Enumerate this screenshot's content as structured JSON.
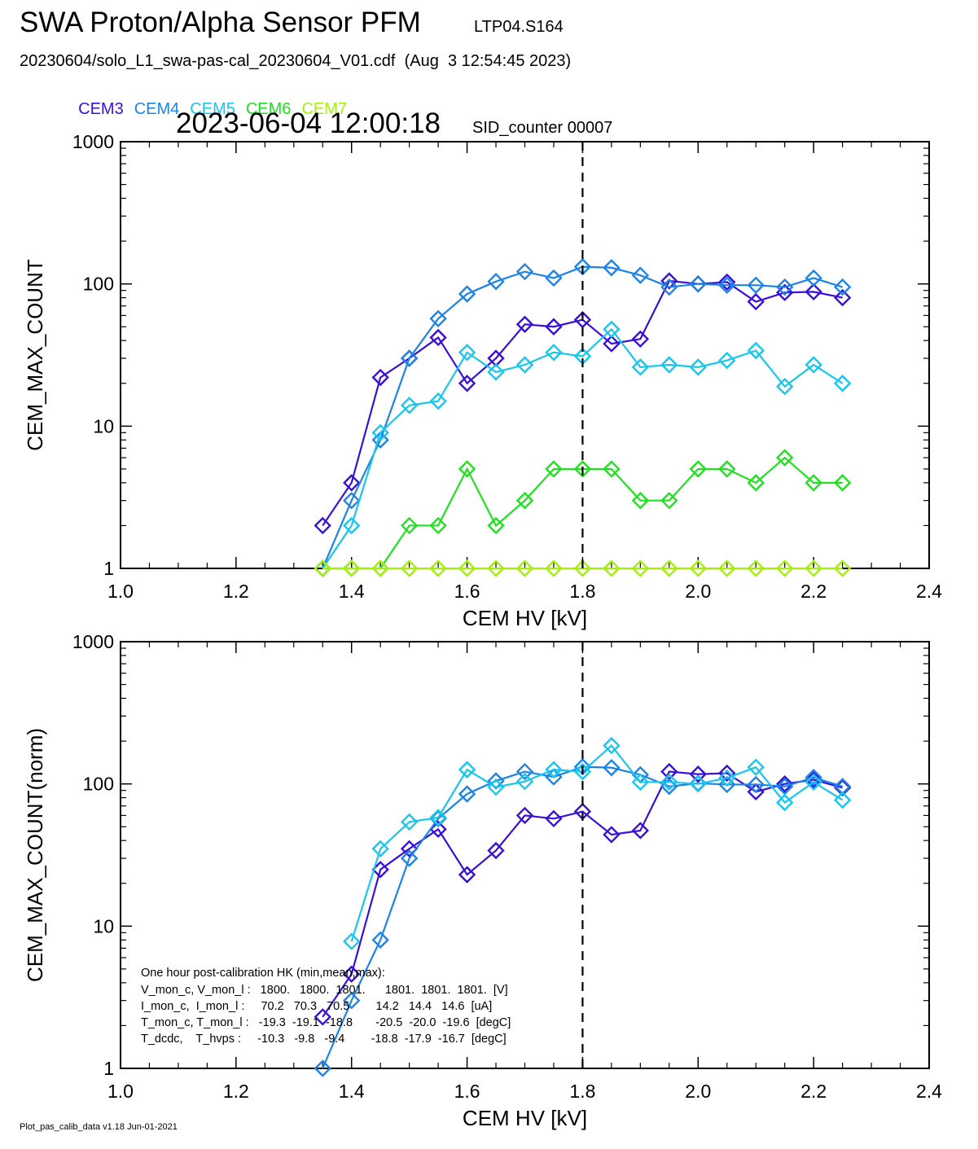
{
  "header": {
    "title": "SWA Proton/Alpha Sensor PFM",
    "title_tag": "LTP04.S164",
    "subtitle": "20230604/solo_L1_swa-pas-cal_20230604_V01.cdf  (Aug  3 12:54:45 2023)",
    "timestamp": "2023-06-04 12:00:18",
    "sid": "SID_counter 00007"
  },
  "legend": [
    {
      "label": "CEM3",
      "color": "#3a10d8"
    },
    {
      "label": "CEM4",
      "color": "#1c84e8"
    },
    {
      "label": "CEM5",
      "color": "#18c6ee"
    },
    {
      "label": "CEM6",
      "color": "#1ee21e"
    },
    {
      "label": "CEM7",
      "color": "#a6ee10"
    }
  ],
  "footer": "Plot_pas_calib_data v1.18 Jun-01-2021",
  "hk_box": {
    "heading": "One hour post-calibration HK (min,mean,max):",
    "lines": [
      "V_mon_c, V_mon_l :   1800.   1800.  1801.      1801.  1801.  1801.  [V]",
      "I_mon_c,  I_mon_l :     70.2   70.3   70.5        14.2   14.4   14.6  [uA]",
      "T_mon_c, T_mon_l :   -19.3  -19.1  -18.8       -20.5  -20.0  -19.6  [degC]",
      "T_dcdc,    T_hvps :     -10.3   -9.8   -9.4        -18.8  -17.9  -16.7  [degC]"
    ]
  },
  "chart_data": [
    {
      "type": "line",
      "log_y": true,
      "xlabel": "CEM HV [kV]",
      "ylabel": "CEM_MAX_COUNT",
      "xlim": [
        1.0,
        2.4
      ],
      "ylim": [
        1,
        1000
      ],
      "x_ticks": [
        "1.0",
        "1.2",
        "1.4",
        "1.6",
        "1.8",
        "2.0",
        "2.2",
        "2.4"
      ],
      "y_ticks": [
        "1",
        "10",
        "100",
        "1000"
      ],
      "reference_line_x": 1.8,
      "x": [
        1.35,
        1.4,
        1.45,
        1.5,
        1.55,
        1.6,
        1.65,
        1.7,
        1.75,
        1.8,
        1.85,
        1.9,
        1.95,
        2.0,
        2.05,
        2.1,
        2.15,
        2.2,
        2.25
      ],
      "series": [
        {
          "name": "CEM3",
          "color": "#3a10d8",
          "values": [
            2,
            4,
            22,
            30,
            42,
            20,
            30,
            52,
            50,
            56,
            38,
            41,
            105,
            100,
            103,
            75,
            87,
            88,
            80
          ]
        },
        {
          "name": "CEM4",
          "color": "#1c84e8",
          "values": [
            1,
            3,
            8,
            30,
            57,
            85,
            104,
            122,
            110,
            132,
            130,
            115,
            95,
            100,
            98,
            98,
            95,
            110,
            95
          ]
        },
        {
          "name": "CEM5",
          "color": "#18c6ee",
          "values": [
            1,
            2,
            9,
            14,
            15,
            33,
            24,
            27,
            33,
            31,
            48,
            26,
            27,
            26,
            29,
            34,
            19,
            27,
            20
          ]
        },
        {
          "name": "CEM6",
          "color": "#1ee21e",
          "values": [
            1,
            1,
            1,
            2,
            2,
            5,
            2,
            3,
            5,
            5,
            5,
            3,
            3,
            5,
            5,
            4,
            6,
            4,
            4
          ]
        },
        {
          "name": "CEM7",
          "color": "#a6ee10",
          "values": [
            1,
            1,
            1,
            1,
            1,
            1,
            1,
            1,
            1,
            1,
            1,
            1,
            1,
            1,
            1,
            1,
            1,
            1,
            1
          ]
        }
      ]
    },
    {
      "type": "line",
      "log_y": true,
      "xlabel": "CEM HV [kV]",
      "ylabel": "CEM_MAX_COUNT(norm)",
      "xlim": [
        1.0,
        2.4
      ],
      "ylim": [
        1,
        1000
      ],
      "x_ticks": [
        "1.0",
        "1.2",
        "1.4",
        "1.6",
        "1.8",
        "2.0",
        "2.2",
        "2.4"
      ],
      "y_ticks": [
        "1",
        "10",
        "100",
        "1000"
      ],
      "reference_line_x": 1.8,
      "x": [
        1.35,
        1.4,
        1.45,
        1.5,
        1.55,
        1.6,
        1.65,
        1.7,
        1.75,
        1.8,
        1.85,
        1.9,
        1.95,
        2.0,
        2.05,
        2.1,
        2.15,
        2.2,
        2.25
      ],
      "series": [
        {
          "name": "CEM3",
          "color": "#3a10d8",
          "values": [
            2.3,
            4.6,
            25,
            35,
            48,
            23,
            34,
            60,
            57,
            64,
            44,
            47,
            122,
            117,
            119,
            88,
            100,
            107,
            94
          ]
        },
        {
          "name": "CEM4",
          "color": "#1c84e8",
          "values": [
            1,
            3,
            8,
            30,
            57,
            85,
            105,
            122,
            112,
            132,
            130,
            116,
            96,
            101,
            99,
            99,
            96,
            111,
            96
          ]
        },
        {
          "name": "CEM5",
          "color": "#18c6ee",
          "values": [
            null,
            7.8,
            35,
            54,
            58,
            126,
            95,
            104,
            126,
            122,
            186,
            103,
            103,
            100,
            110,
            131,
            74,
            103,
            77
          ]
        }
      ]
    }
  ]
}
